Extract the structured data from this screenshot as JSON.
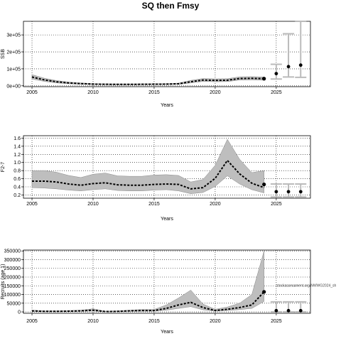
{
  "chart_data": {
    "title": "SQ then Fmsy",
    "panels": [
      {
        "type": "line",
        "ylabel": "SSB",
        "xlabel": "Years",
        "xlim": [
          2004.3,
          2027.8
        ],
        "ylim": [
          -5000,
          380000
        ],
        "xticks": [
          2005,
          2010,
          2015,
          2020,
          2025
        ],
        "yticks": [
          0,
          100000,
          200000,
          300000
        ],
        "ytick_labels": [
          "0e+00",
          "1e+05",
          "2e+05",
          "3e+05"
        ],
        "grid": true,
        "historical": {
          "x": [
            2005,
            2006,
            2007,
            2008,
            2009,
            2010,
            2011,
            2012,
            2013,
            2014,
            2015,
            2016,
            2017,
            2018,
            2019,
            2020,
            2021,
            2022,
            2023,
            2024
          ],
          "median": [
            52000,
            35000,
            24000,
            17000,
            13000,
            10000,
            9000,
            8500,
            8500,
            9000,
            9500,
            10000,
            12000,
            24000,
            34000,
            32000,
            33000,
            43000,
            44000,
            42000
          ],
          "lower": [
            40000,
            26000,
            17000,
            12000,
            9000,
            7000,
            6000,
            5500,
            5500,
            6000,
            6500,
            7000,
            8500,
            17000,
            26000,
            24000,
            25000,
            34000,
            35000,
            33000
          ],
          "upper": [
            66000,
            45000,
            31000,
            22000,
            17000,
            13000,
            12000,
            11500,
            11500,
            12000,
            12500,
            13000,
            16000,
            32000,
            43000,
            41000,
            42000,
            53000,
            54000,
            52000
          ]
        },
        "forecast": {
          "x": [
            2025,
            2026,
            2027
          ],
          "median": [
            72000,
            113000,
            122000
          ],
          "lower": [
            40000,
            52000,
            50000
          ],
          "upper": [
            127000,
            307000,
            380000
          ]
        }
      },
      {
        "type": "line",
        "ylabel": "F2-7",
        "xlabel": "Years",
        "xlim": [
          2004.3,
          2027.8
        ],
        "ylim": [
          0.12,
          1.66
        ],
        "xticks": [
          2005,
          2010,
          2015,
          2020,
          2025
        ],
        "yticks": [
          0.2,
          0.4,
          0.6,
          0.8,
          1.0,
          1.2,
          1.4,
          1.6
        ],
        "ytick_labels": [
          "0.2",
          "0.4",
          "0.6",
          "0.8",
          "1.0",
          "1.2",
          "1.4",
          "1.6"
        ],
        "grid": true,
        "historical": {
          "x": [
            2005,
            2006,
            2007,
            2008,
            2009,
            2010,
            2011,
            2012,
            2013,
            2014,
            2015,
            2016,
            2017,
            2018,
            2019,
            2020,
            2021,
            2022,
            2023,
            2024
          ],
          "median": [
            0.54,
            0.54,
            0.52,
            0.47,
            0.44,
            0.48,
            0.5,
            0.45,
            0.44,
            0.44,
            0.46,
            0.47,
            0.46,
            0.35,
            0.38,
            0.61,
            1.05,
            0.72,
            0.49,
            0.38
          ],
          "lower": [
            0.38,
            0.37,
            0.35,
            0.32,
            0.3,
            0.33,
            0.35,
            0.31,
            0.3,
            0.3,
            0.32,
            0.33,
            0.3,
            0.23,
            0.26,
            0.41,
            0.67,
            0.47,
            0.33,
            0.25
          ],
          "upper": [
            0.8,
            0.8,
            0.76,
            0.68,
            0.63,
            0.71,
            0.74,
            0.67,
            0.66,
            0.66,
            0.69,
            0.7,
            0.68,
            0.52,
            0.58,
            0.93,
            1.57,
            1.08,
            0.75,
            0.8
          ]
        },
        "last_point": {
          "x": 2024,
          "y": 0.46
        },
        "forecast": {
          "x": [
            2025,
            2026,
            2027
          ],
          "median": [
            0.28,
            0.28,
            0.28
          ],
          "lower": [
            0.15,
            0.15,
            0.15
          ],
          "upper": [
            0.47,
            0.47,
            0.47
          ]
        }
      },
      {
        "type": "line",
        "ylabel": "Recruits (age 1)",
        "xlabel": "Years",
        "xlim": [
          2004.3,
          2027.8
        ],
        "ylim": [
          -8000,
          355000
        ],
        "xticks": [
          2005,
          2010,
          2015,
          2020,
          2025
        ],
        "yticks": [
          0,
          50000,
          100000,
          150000,
          200000,
          250000,
          300000,
          350000
        ],
        "ytick_labels": [
          "0",
          "50000",
          "100000",
          "150000",
          "200000",
          "250000",
          "300000",
          "350000"
        ],
        "grid": true,
        "historical": {
          "x": [
            2005,
            2006,
            2007,
            2008,
            2009,
            2010,
            2011,
            2012,
            2013,
            2014,
            2015,
            2016,
            2017,
            2018,
            2019,
            2020,
            2021,
            2022,
            2023,
            2024
          ],
          "median": [
            6000,
            3000,
            3000,
            4000,
            6000,
            10000,
            2000,
            3000,
            6000,
            8000,
            8000,
            20000,
            40000,
            55000,
            25000,
            8000,
            15000,
            25000,
            40000,
            115000
          ],
          "lower": [
            3000,
            1500,
            1500,
            2000,
            3000,
            5000,
            1000,
            1500,
            3000,
            4000,
            4000,
            10000,
            20000,
            30000,
            12000,
            4000,
            8000,
            13000,
            20000,
            60000
          ],
          "upper": [
            10000,
            6000,
            6000,
            8000,
            10000,
            18000,
            4000,
            6000,
            10000,
            14000,
            14000,
            40000,
            80000,
            125000,
            45000,
            15000,
            28000,
            50000,
            100000,
            350000
          ]
        },
        "forecast": {
          "x": [
            2025,
            2026,
            2027
          ],
          "median": [
            7000,
            7000,
            7000
          ],
          "lower": [
            0,
            0,
            0
          ],
          "upper": [
            58000,
            58000,
            58000
          ]
        },
        "annotation": "stockassessment.org/NWWG2024_sh"
      }
    ]
  }
}
